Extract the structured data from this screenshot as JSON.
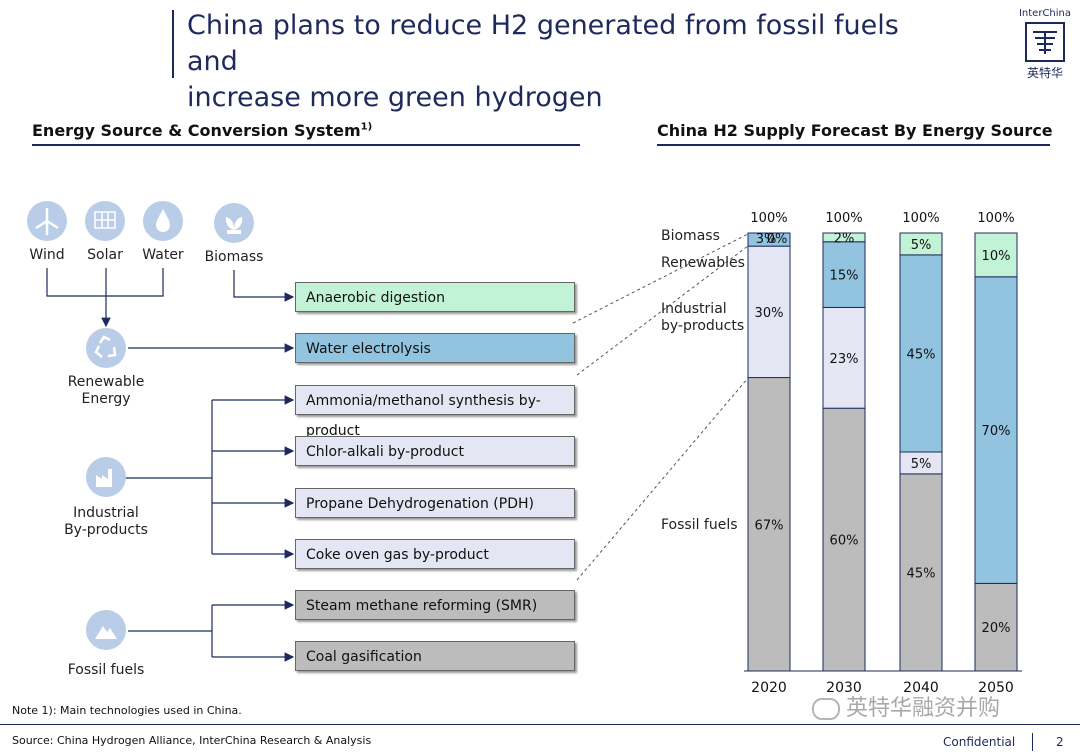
{
  "header": {
    "title_line1": "China plans to reduce H2 generated from fossil fuels and",
    "title_line2": "increase more green hydrogen",
    "logo_top": "InterChina",
    "logo_bottom": "英特华"
  },
  "left_section": {
    "heading": "Energy Source & Conversion System",
    "heading_sup": "1)",
    "sources": {
      "wind": "Wind",
      "solar": "Solar",
      "water": "Water",
      "biomass": "Biomass"
    },
    "groups": {
      "renewable_line1": "Renewable",
      "renewable_line2": "Energy",
      "industrial_line1": "Industrial",
      "industrial_line2": "By-products",
      "fossil": "Fossil fuels"
    },
    "technologies": [
      {
        "label": "Anaerobic digestion",
        "color": "#c3f3d6"
      },
      {
        "label": "Water electrolysis",
        "color": "#92c4e0"
      },
      {
        "label": "Ammonia/methanol synthesis by-product",
        "color": "#e4e6f3"
      },
      {
        "label": "Chlor-alkali by-product",
        "color": "#e4e6f3"
      },
      {
        "label": "Propane Dehydrogenation (PDH)",
        "color": "#e4e6f3"
      },
      {
        "label": "Coke oven gas by-product",
        "color": "#e4e6f3"
      },
      {
        "label": "Steam methane reforming (SMR)",
        "color": "#bcbcbc"
      },
      {
        "label": "Coal gasification",
        "color": "#bcbcbc"
      }
    ]
  },
  "right_section": {
    "heading": "China H2 Supply Forecast By Energy Source"
  },
  "chart_data": {
    "type": "bar",
    "stacked": true,
    "categories": [
      "2020",
      "2030",
      "2040",
      "2050"
    ],
    "totals": [
      "100%",
      "100%",
      "100%",
      "100%"
    ],
    "series": [
      {
        "name": "Fossil fuels",
        "values": [
          67,
          60,
          45,
          20
        ],
        "labels": [
          "67%",
          "60%",
          "45%",
          "20%"
        ],
        "color": "#bcbcbc"
      },
      {
        "name": "Industrial by-products",
        "values": [
          30,
          23,
          5,
          0
        ],
        "labels": [
          "30%",
          "23%",
          "5%",
          ""
        ],
        "color": "#e4e6f3"
      },
      {
        "name": "Renewables",
        "values": [
          3,
          15,
          45,
          70
        ],
        "labels": [
          "3%",
          "15%",
          "45%",
          "70%"
        ],
        "color": "#92c4e0"
      },
      {
        "name": "Biomass",
        "values": [
          0,
          2,
          5,
          10
        ],
        "labels": [
          "0%",
          "2%",
          "5%",
          "10%"
        ],
        "color": "#c3f3d6"
      }
    ],
    "legend_labels": {
      "biomass": "Biomass",
      "renewables": "Renewables",
      "industrial_line1": "Industrial",
      "industrial_line2": "by-products",
      "fossil": "Fossil fuels"
    },
    "ylim": [
      0,
      100
    ]
  },
  "footer": {
    "note": "Note 1): Main technologies used in China.",
    "source": "Source: China Hydrogen Alliance, InterChina Research & Analysis",
    "confidential": "Confidential",
    "page_number": "2",
    "watermark": "英特华融资并购"
  }
}
